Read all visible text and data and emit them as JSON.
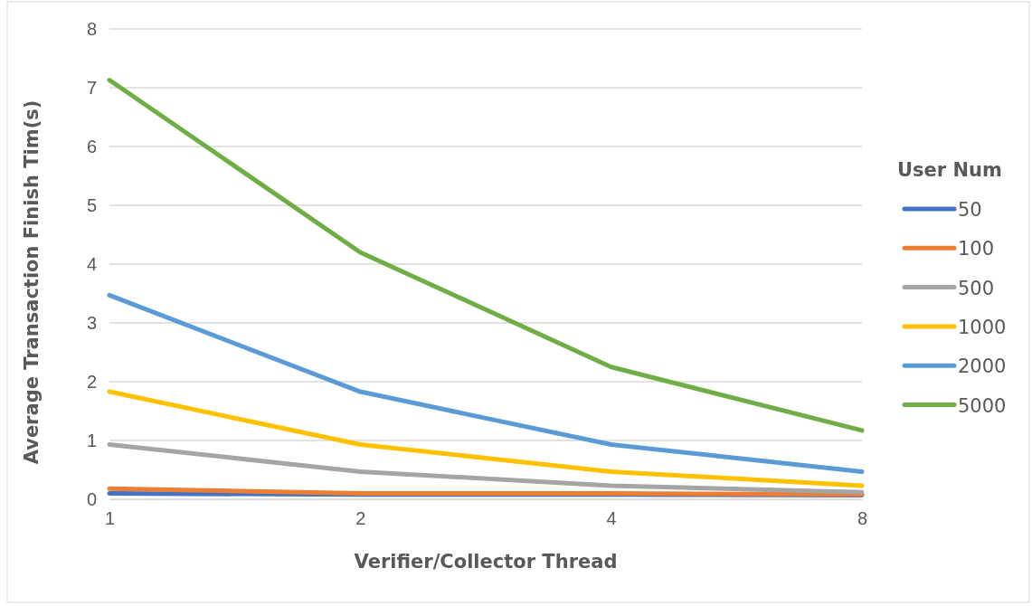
{
  "chart_data": {
    "type": "line",
    "xlabel": "Verifier/Collector Thread",
    "ylabel": "Average Transaction Finish Tim(s)",
    "legend_title": "User Num",
    "categories": [
      "1",
      "2",
      "4",
      "8"
    ],
    "series": [
      {
        "name": "50",
        "color": "#4472c4",
        "values": [
          0.1,
          0.08,
          0.08,
          0.07
        ]
      },
      {
        "name": "100",
        "color": "#ed7d31",
        "values": [
          0.18,
          0.1,
          0.1,
          0.08
        ]
      },
      {
        "name": "500",
        "color": "#a5a5a5",
        "values": [
          0.93,
          0.47,
          0.23,
          0.12
        ]
      },
      {
        "name": "1000",
        "color": "#ffc000",
        "values": [
          1.83,
          0.93,
          0.47,
          0.23
        ]
      },
      {
        "name": "2000",
        "color": "#5b9bd5",
        "values": [
          3.47,
          1.83,
          0.93,
          0.47
        ]
      },
      {
        "name": "5000",
        "color": "#70ad47",
        "values": [
          7.13,
          4.2,
          2.25,
          1.17
        ]
      }
    ],
    "ylim": [
      0,
      8
    ],
    "yticks": [
      0,
      1,
      2,
      3,
      4,
      5,
      6,
      7,
      8
    ],
    "grid": "y",
    "legend": "right",
    "line_style": "solid",
    "marker": "none"
  }
}
